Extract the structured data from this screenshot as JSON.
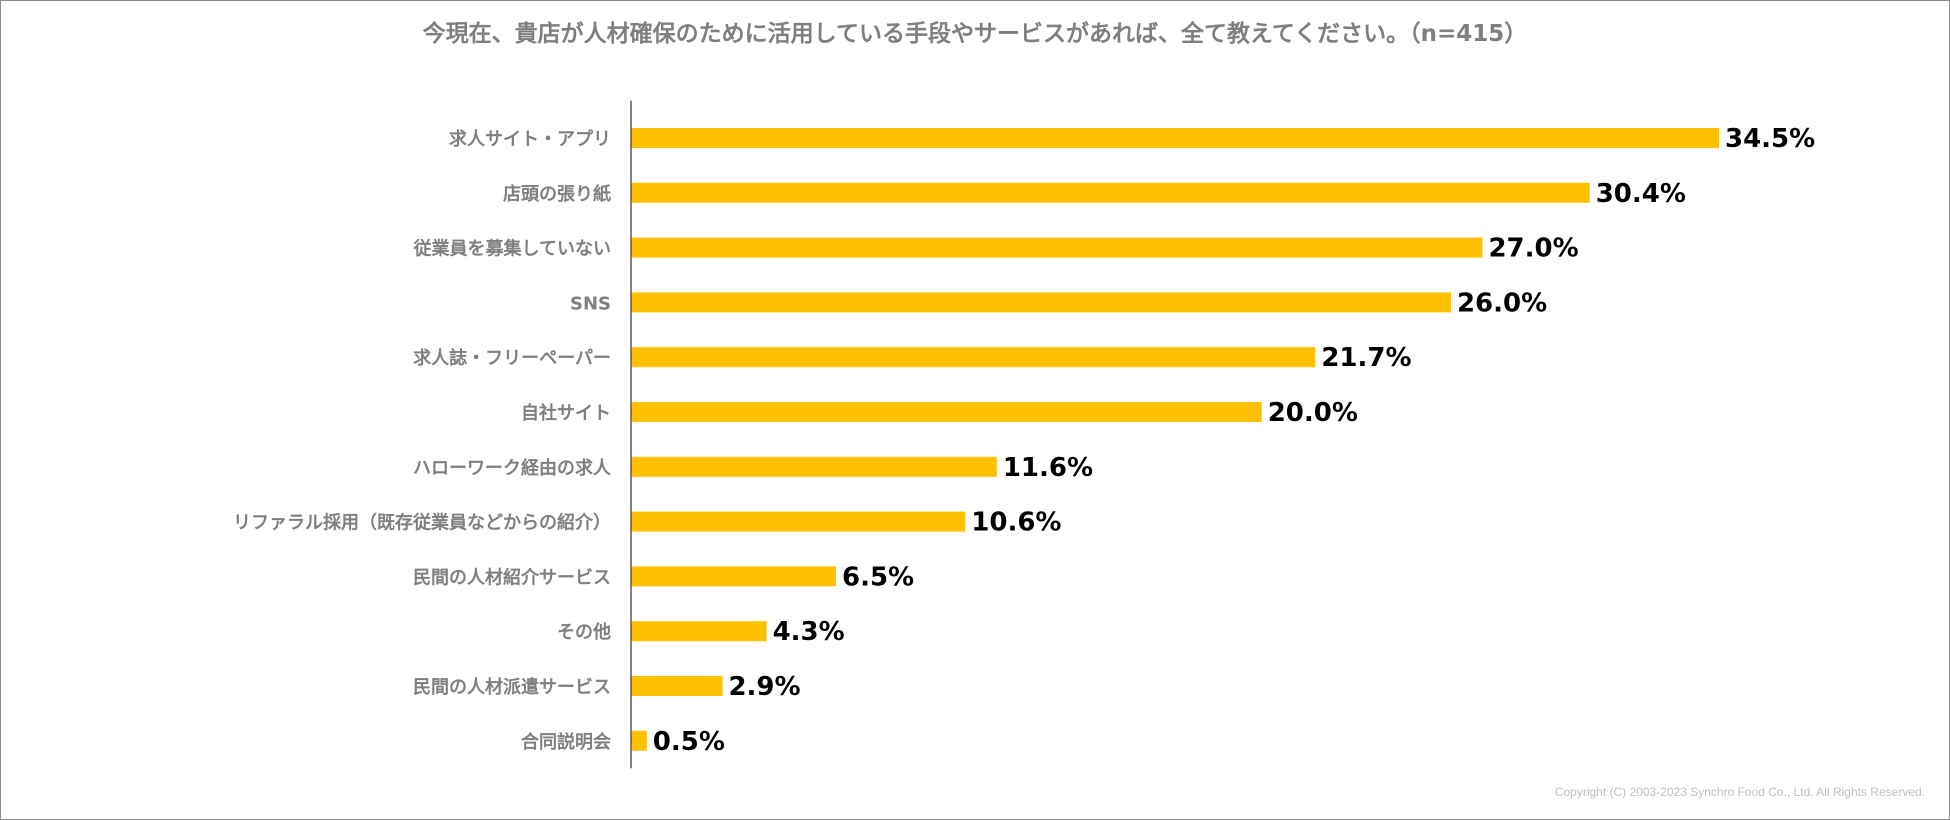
{
  "chart_data": {
    "type": "bar",
    "orientation": "horizontal",
    "title": "今現在、貴店が人材確保のために活用している手段やサービスがあれば、全て教えてください。（n=415）",
    "categories": [
      "求人サイト・アプリ",
      "店頭の張り紙",
      "従業員を募集していない",
      "SNS",
      "求人誌・フリーペーパー",
      "自社サイト",
      "ハローワーク経由の求人",
      "リファラル採用（既存従業員などからの紹介）",
      "民間の人材紹介サービス",
      "その他",
      "民間の人材派遣サービス",
      "合同説明会"
    ],
    "values": [
      34.5,
      30.4,
      27.0,
      26.0,
      21.7,
      20.0,
      11.6,
      10.6,
      6.5,
      4.3,
      2.9,
      0.5
    ],
    "value_labels": [
      "34.5%",
      "30.4%",
      "27.0%",
      "26.0%",
      "21.7%",
      "20.0%",
      "11.6%",
      "10.6%",
      "6.5%",
      "4.3%",
      "2.9%",
      "0.5%"
    ],
    "xlim": [
      0,
      35
    ],
    "grid": false,
    "legend": "none",
    "bar_color": "#FFC000"
  },
  "footer": {
    "copyright": "Copyright (C) 2003-2023   Synchro Food Co., Ltd. All Rights Reserved."
  },
  "colors": {
    "bar": "#FFC000",
    "category_text": "#7F7F7F",
    "value_text": "#000000",
    "axis": "#595959"
  }
}
